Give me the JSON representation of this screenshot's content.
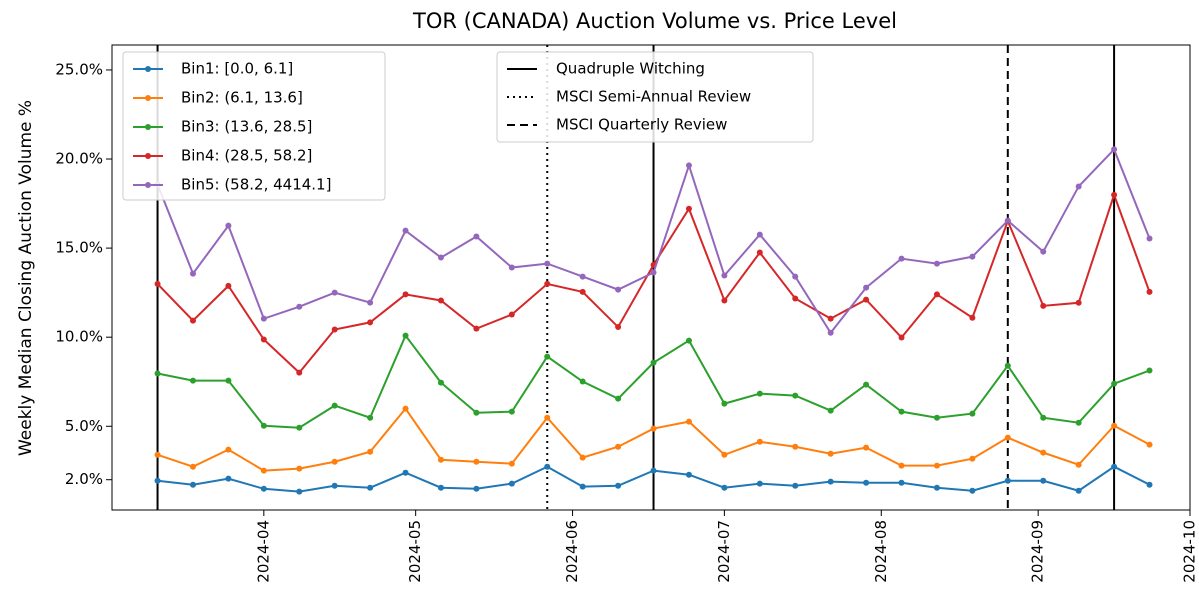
{
  "chart_data": {
    "type": "line",
    "title": "TOR (CANADA) Auction Volume vs. Price Level",
    "y_label": "Weekly Median Closing Auction Volume %",
    "x": [
      "2024-03-11",
      "2024-03-18",
      "2024-03-25",
      "2024-04-01",
      "2024-04-08",
      "2024-04-15",
      "2024-04-22",
      "2024-04-29",
      "2024-05-06",
      "2024-05-13",
      "2024-05-20",
      "2024-05-27",
      "2024-06-03",
      "2024-06-10",
      "2024-06-17",
      "2024-06-24",
      "2024-07-01",
      "2024-07-08",
      "2024-07-15",
      "2024-07-22",
      "2024-07-29",
      "2024-08-05",
      "2024-08-12",
      "2024-08-19",
      "2024-08-26",
      "2024-09-02",
      "2024-09-09",
      "2024-09-16",
      "2024-09-23"
    ],
    "series": [
      {
        "name": "Bin1: [0.0, 6.1]",
        "color": "#1f77b4",
        "values": [
          1.94,
          1.72,
          2.06,
          1.49,
          1.33,
          1.66,
          1.55,
          2.39,
          1.55,
          1.49,
          1.78,
          2.73,
          1.61,
          1.66,
          2.51,
          2.28,
          1.55,
          1.78,
          1.66,
          1.89,
          1.83,
          1.83,
          1.55,
          1.38,
          1.94,
          1.94,
          1.38,
          2.73,
          1.72
        ]
      },
      {
        "name": "Bin2: (6.1, 13.6]",
        "color": "#ff7f0e",
        "values": [
          3.4,
          2.73,
          3.69,
          2.51,
          2.62,
          3.01,
          3.57,
          5.99,
          3.12,
          3.01,
          2.9,
          5.48,
          3.24,
          3.85,
          4.87,
          5.26,
          3.4,
          4.13,
          3.85,
          3.46,
          3.8,
          2.79,
          2.79,
          3.18,
          4.36,
          3.52,
          2.84,
          5.03,
          3.97
        ]
      },
      {
        "name": "Bin3: (13.6, 28.5]",
        "color": "#2ca02c",
        "values": [
          7.96,
          7.56,
          7.56,
          5.03,
          4.92,
          6.16,
          5.48,
          10.09,
          7.45,
          5.76,
          5.82,
          8.91,
          7.51,
          6.55,
          8.57,
          9.81,
          6.27,
          6.83,
          6.72,
          5.88,
          7.34,
          5.82,
          5.48,
          5.71,
          8.4,
          5.48,
          5.2,
          7.39,
          8.13
        ]
      },
      {
        "name": "Bin4: (28.5, 58.2]",
        "color": "#d62728",
        "values": [
          12.99,
          10.93,
          12.88,
          9.87,
          8.01,
          10.43,
          10.83,
          12.4,
          12.06,
          10.48,
          11.27,
          12.99,
          12.54,
          10.57,
          14.06,
          17.21,
          12.06,
          14.75,
          12.17,
          11.04,
          12.11,
          9.98,
          12.4,
          11.09,
          16.52,
          11.76,
          11.93,
          17.99,
          12.54
        ]
      },
      {
        "name": "Bin5: (58.2, 4414.1]",
        "color": "#9467bd",
        "values": [
          18.57,
          13.57,
          16.26,
          11.04,
          11.71,
          12.5,
          11.94,
          15.98,
          14.47,
          15.65,
          13.91,
          14.13,
          13.4,
          12.67,
          13.63,
          19.64,
          13.46,
          15.76,
          13.4,
          10.25,
          12.78,
          14.41,
          14.13,
          14.52,
          16.54,
          14.8,
          18.46,
          20.54,
          15.54
        ]
      }
    ],
    "events": [
      {
        "name": "Quadruple Witching",
        "style": "solid",
        "dates": [
          "2024-03-11",
          "2024-06-17",
          "2024-09-16"
        ]
      },
      {
        "name": "MSCI Semi-Annual Review",
        "style": "dotted",
        "dates": [
          "2024-05-27"
        ]
      },
      {
        "name": "MSCI Quarterly Review",
        "style": "dashed",
        "dates": [
          "2024-08-26"
        ]
      }
    ],
    "xlim": [
      "2024-03-02",
      "2024-10-01"
    ],
    "xticks": [
      {
        "value": "2024-04-01",
        "label": "2024-04"
      },
      {
        "value": "2024-05-01",
        "label": "2024-05"
      },
      {
        "value": "2024-06-01",
        "label": "2024-06"
      },
      {
        "value": "2024-07-01",
        "label": "2024-07"
      },
      {
        "value": "2024-08-01",
        "label": "2024-08"
      },
      {
        "value": "2024-09-01",
        "label": "2024-09"
      },
      {
        "value": "2024-10-01",
        "label": "2024-10"
      }
    ],
    "ylim": [
      0.3,
      26.4
    ],
    "yticks": [
      {
        "value": 2,
        "label": "2.0%"
      },
      {
        "value": 5,
        "label": "5.0%"
      },
      {
        "value": 10,
        "label": "10.0%"
      },
      {
        "value": 15,
        "label": "15.0%"
      },
      {
        "value": 20,
        "label": "20.0%"
      },
      {
        "value": 25,
        "label": "25.0%"
      }
    ],
    "grid": false
  }
}
